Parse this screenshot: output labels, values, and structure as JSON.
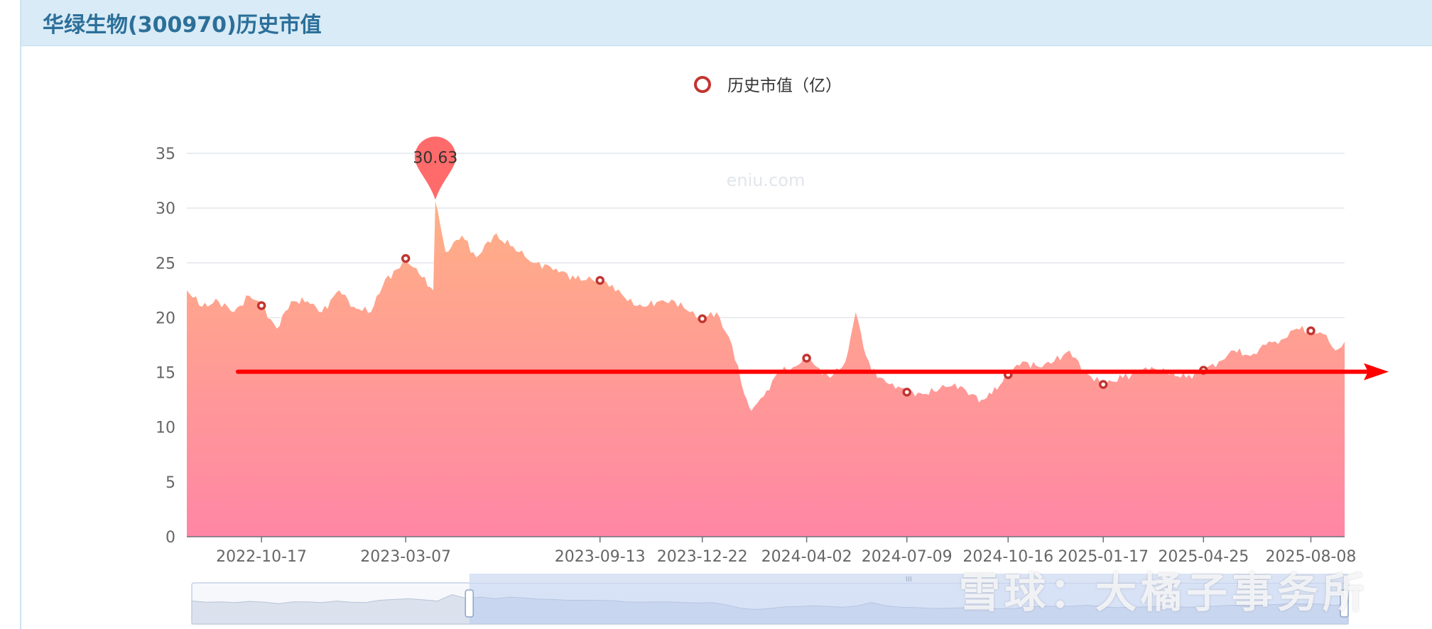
{
  "header": {
    "title": "华绿生物(300970)历史市值"
  },
  "watermark_site": "eniu.com",
  "watermark_overlay": "雪球：大橘子事务所",
  "colors": {
    "area_top": "#ffb085",
    "area_bottom": "#ff86a5",
    "marker": "#c23531",
    "pin": "#ff6b6b",
    "trend_arrow": "#ff0000",
    "grid": "#e3e6ec",
    "axis_text": "#666666"
  },
  "chart_data": {
    "type": "area",
    "legend": [
      {
        "name": "历史市值（亿）",
        "icon": "circle-outline-icon",
        "position": "top-center"
      }
    ],
    "ylim": [
      0,
      35
    ],
    "yticks": [
      0,
      5,
      10,
      15,
      20,
      25,
      30,
      35
    ],
    "xticks": [
      "2022-10-17",
      "2023-03-07",
      "2023-09-13",
      "2023-12-22",
      "2024-04-02",
      "2024-07-09",
      "2024-10-16",
      "2025-01-17",
      "2025-04-25",
      "2025-08-08"
    ],
    "grid": true,
    "series": [
      {
        "name": "历史市值（亿）",
        "x": [
          "2022-08-05",
          "2022-08-20",
          "2022-09-05",
          "2022-09-20",
          "2022-10-05",
          "2022-10-17",
          "2022-11-01",
          "2022-11-15",
          "2022-12-01",
          "2022-12-15",
          "2023-01-01",
          "2023-01-15",
          "2023-02-01",
          "2023-02-15",
          "2023-03-01",
          "2023-03-07",
          "2023-03-20",
          "2023-04-03",
          "2023-04-05",
          "2023-04-15",
          "2023-05-01",
          "2023-05-15",
          "2023-06-01",
          "2023-06-20",
          "2023-07-10",
          "2023-08-01",
          "2023-08-20",
          "2023-09-05",
          "2023-09-13",
          "2023-09-25",
          "2023-10-10",
          "2023-10-25",
          "2023-11-10",
          "2023-11-25",
          "2023-12-10",
          "2023-12-22",
          "2024-01-05",
          "2024-01-20",
          "2024-02-01",
          "2024-02-08",
          "2024-02-20",
          "2024-03-05",
          "2024-03-20",
          "2024-04-02",
          "2024-04-12",
          "2024-04-25",
          "2024-05-10",
          "2024-05-20",
          "2024-05-30",
          "2024-06-10",
          "2024-06-25",
          "2024-07-09",
          "2024-07-25",
          "2024-08-10",
          "2024-08-25",
          "2024-09-10",
          "2024-09-20",
          "2024-09-30",
          "2024-10-16",
          "2024-10-30",
          "2024-11-15",
          "2024-11-30",
          "2024-12-15",
          "2024-12-30",
          "2025-01-17",
          "2025-02-05",
          "2025-02-20",
          "2025-03-05",
          "2025-03-20",
          "2025-04-08",
          "2025-04-25",
          "2025-05-10",
          "2025-05-25",
          "2025-06-10",
          "2025-06-25",
          "2025-07-10",
          "2025-07-25",
          "2025-08-08",
          "2025-08-20",
          "2025-09-01",
          "2025-09-10"
        ],
        "y": [
          22.5,
          21.0,
          21.5,
          20.5,
          22.0,
          21.1,
          19.0,
          21.5,
          21.5,
          20.5,
          22.5,
          21.0,
          20.5,
          23.5,
          24.5,
          25.4,
          24.0,
          22.5,
          30.63,
          26.0,
          27.5,
          25.5,
          27.5,
          26.5,
          25.0,
          24.5,
          23.5,
          23.5,
          23.4,
          23.0,
          21.5,
          21.0,
          21.5,
          21.5,
          20.5,
          19.9,
          20.5,
          17.5,
          13.0,
          11.5,
          12.8,
          15.0,
          15.5,
          16.3,
          15.5,
          14.5,
          16.0,
          20.5,
          16.5,
          14.5,
          14.0,
          13.2,
          13.0,
          13.5,
          14.0,
          13.0,
          12.5,
          13.0,
          14.8,
          16.0,
          15.5,
          16.0,
          17.0,
          15.0,
          13.9,
          14.5,
          15.0,
          15.5,
          15.0,
          14.5,
          15.2,
          16.0,
          17.0,
          16.5,
          17.5,
          18.0,
          19.0,
          18.8,
          18.5,
          17.0,
          17.8
        ]
      }
    ],
    "markers": [
      {
        "x": "2022-10-17",
        "y": 21.1
      },
      {
        "x": "2023-03-07",
        "y": 25.4
      },
      {
        "x": "2023-09-13",
        "y": 23.4
      },
      {
        "x": "2023-12-22",
        "y": 19.9
      },
      {
        "x": "2024-04-02",
        "y": 16.3
      },
      {
        "x": "2024-07-09",
        "y": 13.2
      },
      {
        "x": "2024-10-16",
        "y": 14.8
      },
      {
        "x": "2025-01-17",
        "y": 13.9
      },
      {
        "x": "2025-04-25",
        "y": 15.2
      },
      {
        "x": "2025-08-08",
        "y": 18.8
      }
    ],
    "max_point": {
      "x": "2023-04-05",
      "y": 30.63,
      "label": "30.63"
    },
    "trend_line": {
      "y": 15,
      "direction": "right"
    },
    "data_zoom": {
      "range_start_fraction": 0.24,
      "range_end_fraction": 1.0
    }
  }
}
